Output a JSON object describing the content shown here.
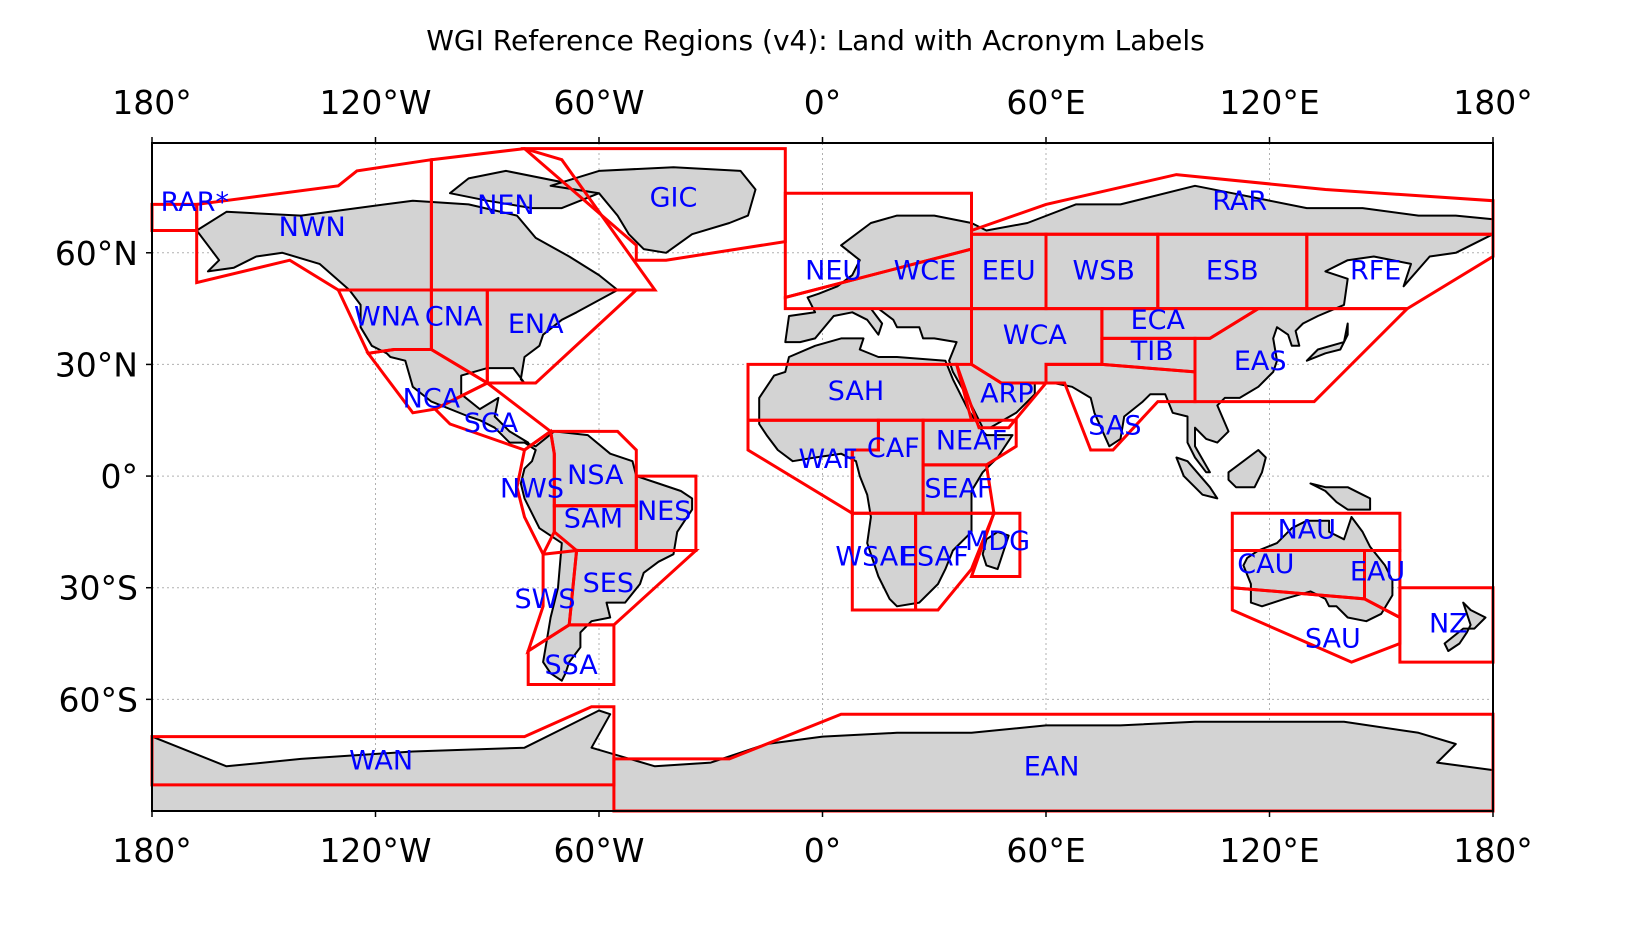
{
  "title": "WGI Reference Regions (v4): Land with Acronym Labels",
  "x_ticks": [
    "180°",
    "120°W",
    "60°W",
    "0°",
    "60°E",
    "120°E",
    "180°"
  ],
  "y_ticks": [
    "60°N",
    "30°N",
    "0°",
    "30°S",
    "60°S"
  ],
  "colors": {
    "land": "#d3d3d3",
    "coast": "#000000",
    "region_outline": "#ff0000",
    "label": "#0000ff",
    "grid": "#b0b0b0"
  },
  "regions": [
    {
      "acronym": "RAR*",
      "lon": -168.5,
      "lat": 73.3,
      "polygon": [
        [
          -180,
          73
        ],
        [
          -168,
          73
        ],
        [
          -168,
          66
        ],
        [
          -180,
          66
        ]
      ]
    },
    {
      "acronym": "NWN",
      "lon": -137,
      "lat": 66.5,
      "polygon": [
        [
          -168,
          73
        ],
        [
          -168,
          52
        ],
        [
          -143,
          58
        ],
        [
          -130,
          50
        ],
        [
          -105,
          50
        ],
        [
          -105,
          85
        ],
        [
          -125,
          82
        ],
        [
          -130,
          78
        ]
      ]
    },
    {
      "acronym": "NEN",
      "lon": -85,
      "lat": 72.5,
      "polygon": [
        [
          -105,
          85
        ],
        [
          -80,
          88
        ],
        [
          -70,
          85
        ],
        [
          -45,
          50
        ],
        [
          -105,
          50
        ]
      ]
    },
    {
      "acronym": "GIC",
      "lon": -40,
      "lat": 74.5,
      "polygon": [
        [
          -80,
          88
        ],
        [
          -10,
          88
        ],
        [
          -10,
          63
        ],
        [
          -42,
          58
        ],
        [
          -50,
          58
        ],
        [
          -50,
          62
        ]
      ]
    },
    {
      "acronym": "WNA",
      "lon": -117,
      "lat": 42.5,
      "polygon": [
        [
          -130,
          50
        ],
        [
          -105,
          50
        ],
        [
          -105,
          34
        ],
        [
          -115,
          34
        ],
        [
          -122,
          33
        ],
        [
          -130,
          50
        ]
      ]
    },
    {
      "acronym": "CNA",
      "lon": -99,
      "lat": 42.5,
      "polygon": [
        [
          -105,
          50
        ],
        [
          -90,
          50
        ],
        [
          -90,
          25
        ],
        [
          -105,
          34
        ]
      ]
    },
    {
      "acronym": "ENA",
      "lon": -77,
      "lat": 40.5,
      "polygon": [
        [
          -90,
          50
        ],
        [
          -50,
          50
        ],
        [
          -77,
          25
        ],
        [
          -90,
          25
        ]
      ]
    },
    {
      "acronym": "NCA",
      "lon": -105,
      "lat": 20.5,
      "polygon": [
        [
          -122,
          33
        ],
        [
          -115,
          34
        ],
        [
          -105,
          34
        ],
        [
          -90,
          25
        ],
        [
          -104,
          18
        ],
        [
          -110,
          17
        ]
      ]
    },
    {
      "acronym": "SCA",
      "lon": -89,
      "lat": 13.8,
      "polygon": [
        [
          -104,
          18
        ],
        [
          -90,
          25
        ],
        [
          -73,
          12
        ],
        [
          -80,
          7
        ],
        [
          -100,
          14
        ]
      ]
    },
    {
      "acronym": "NSA",
      "lon": -61,
      "lat": -0.1,
      "polygon": [
        [
          -73,
          12
        ],
        [
          -55,
          12
        ],
        [
          -50,
          7
        ],
        [
          -50,
          -8
        ],
        [
          -72,
          -8
        ],
        [
          -72,
          6
        ]
      ]
    },
    {
      "acronym": "NWS",
      "lon": -78,
      "lat": -3.8,
      "polygon": [
        [
          -80,
          7
        ],
        [
          -73,
          12
        ],
        [
          -72,
          6
        ],
        [
          -72,
          -8
        ],
        [
          -72,
          -15
        ],
        [
          -75,
          -21
        ],
        [
          -80,
          -11
        ],
        [
          -82,
          -3
        ]
      ]
    },
    {
      "acronym": "NES",
      "lon": -42.5,
      "lat": -9.8,
      "polygon": [
        [
          -50,
          0
        ],
        [
          -34,
          0
        ],
        [
          -34,
          -20
        ],
        [
          -50,
          -20
        ]
      ]
    },
    {
      "acronym": "SAM",
      "lon": -61.5,
      "lat": -11.8,
      "polygon": [
        [
          -72,
          -8
        ],
        [
          -50,
          -8
        ],
        [
          -50,
          -20
        ],
        [
          -66,
          -20
        ],
        [
          -72,
          -15
        ]
      ]
    },
    {
      "acronym": "SWS",
      "lon": -74.5,
      "lat": -33.5,
      "polygon": [
        [
          -75,
          -21
        ],
        [
          -66,
          -20
        ],
        [
          -68,
          -40
        ],
        [
          -79,
          -47
        ],
        [
          -75,
          -35
        ]
      ]
    },
    {
      "acronym": "SES",
      "lon": -57.5,
      "lat": -29.2,
      "polygon": [
        [
          -66,
          -20
        ],
        [
          -34,
          -20
        ],
        [
          -56,
          -40
        ],
        [
          -68,
          -40
        ]
      ]
    },
    {
      "acronym": "SSA",
      "lon": -67.5,
      "lat": -51.2,
      "polygon": [
        [
          -79,
          -47
        ],
        [
          -68,
          -40
        ],
        [
          -56,
          -40
        ],
        [
          -56,
          -56
        ],
        [
          -79,
          -56
        ]
      ]
    },
    {
      "acronym": "WAN",
      "lon": -118.5,
      "lat": -76.8,
      "polygon": [
        [
          -180,
          -70
        ],
        [
          -80,
          -70
        ],
        [
          -62,
          -62
        ],
        [
          -56,
          -62
        ],
        [
          -56,
          -83
        ],
        [
          -180,
          -83
        ]
      ]
    },
    {
      "acronym": "EAN",
      "lon": 61.5,
      "lat": -78.5,
      "polygon": [
        [
          -56,
          -83
        ],
        [
          -56,
          -76
        ],
        [
          -25,
          -76
        ],
        [
          5,
          -64
        ],
        [
          180,
          -64
        ],
        [
          180,
          -90
        ],
        [
          -56,
          -90
        ]
      ]
    },
    {
      "acronym": "NEU",
      "lon": 3,
      "lat": 54.8,
      "polygon": [
        [
          -10,
          76
        ],
        [
          40,
          76
        ],
        [
          40,
          61
        ],
        [
          -10,
          48
        ]
      ]
    },
    {
      "acronym": "WCE",
      "lon": 27.5,
      "lat": 54.8,
      "polygon": [
        [
          -10,
          45
        ],
        [
          -10,
          48
        ],
        [
          40,
          61
        ],
        [
          40,
          45
        ]
      ]
    },
    {
      "acronym": "EEU",
      "lon": 50,
      "lat": 54.8,
      "polygon": [
        [
          40,
          65
        ],
        [
          60,
          65
        ],
        [
          60,
          45
        ],
        [
          40,
          45
        ]
      ]
    },
    {
      "acronym": "WSB",
      "lon": 75.5,
      "lat": 54.8,
      "polygon": [
        [
          60,
          65
        ],
        [
          90,
          65
        ],
        [
          90,
          45
        ],
        [
          60,
          45
        ]
      ]
    },
    {
      "acronym": "ESB",
      "lon": 110,
      "lat": 54.8,
      "polygon": [
        [
          90,
          65
        ],
        [
          130,
          65
        ],
        [
          130,
          45
        ],
        [
          90,
          45
        ]
      ]
    },
    {
      "acronym": "RFE",
      "lon": 148.5,
      "lat": 54.8,
      "polygon": [
        [
          130,
          65
        ],
        [
          180,
          65
        ],
        [
          180,
          59
        ],
        [
          157,
          45
        ],
        [
          130,
          45
        ]
      ]
    },
    {
      "acronym": "RAR",
      "lon": 112,
      "lat": 73.5,
      "polygon": [
        [
          40,
          66
        ],
        [
          60,
          73
        ],
        [
          95,
          81
        ],
        [
          135,
          77
        ],
        [
          180,
          74
        ],
        [
          180,
          65
        ],
        [
          40,
          65
        ]
      ]
    },
    {
      "acronym": "WCA",
      "lon": 57,
      "lat": 37.5,
      "polygon": [
        [
          40,
          45
        ],
        [
          75,
          45
        ],
        [
          75,
          30
        ],
        [
          60,
          30
        ],
        [
          60,
          25
        ],
        [
          48,
          25
        ],
        [
          40,
          30
        ]
      ]
    },
    {
      "acronym": "ECA",
      "lon": 90,
      "lat": 41.5,
      "polygon": [
        [
          75,
          45
        ],
        [
          117,
          45
        ],
        [
          104,
          37
        ],
        [
          75,
          37
        ]
      ]
    },
    {
      "acronym": "TIB",
      "lon": 88.5,
      "lat": 33.2,
      "polygon": [
        [
          75,
          37
        ],
        [
          100,
          37
        ],
        [
          100,
          28
        ],
        [
          75,
          30
        ]
      ]
    },
    {
      "acronym": "EAS",
      "lon": 117.5,
      "lat": 30.5,
      "polygon": [
        [
          100,
          37
        ],
        [
          104,
          37
        ],
        [
          117,
          45
        ],
        [
          157,
          45
        ],
        [
          132,
          20
        ],
        [
          100,
          20
        ]
      ]
    },
    {
      "acronym": "SAS",
      "lon": 78.5,
      "lat": 13.2,
      "polygon": [
        [
          60,
          30
        ],
        [
          75,
          30
        ],
        [
          100,
          28
        ],
        [
          100,
          20
        ],
        [
          90,
          20
        ],
        [
          78,
          7
        ],
        [
          72,
          7
        ],
        [
          65,
          25
        ],
        [
          60,
          25
        ]
      ]
    },
    {
      "acronym": "ARP",
      "lon": 49.5,
      "lat": 21.8,
      "polygon": [
        [
          40,
          30
        ],
        [
          48,
          25
        ],
        [
          60,
          25
        ],
        [
          50,
          13
        ],
        [
          42,
          13
        ],
        [
          36,
          30
        ]
      ]
    },
    {
      "acronym": "SAH",
      "lon": 9,
      "lat": 22.5,
      "polygon": [
        [
          -20,
          30
        ],
        [
          36,
          30
        ],
        [
          40,
          15
        ],
        [
          -20,
          15
        ]
      ]
    },
    {
      "acronym": "WAF",
      "lon": 1.5,
      "lat": 4.2,
      "polygon": [
        [
          -20,
          15
        ],
        [
          15,
          15
        ],
        [
          15,
          7
        ],
        [
          8,
          7
        ],
        [
          8,
          -10
        ],
        [
          -20,
          7
        ]
      ]
    },
    {
      "acronym": "CAF",
      "lon": 19,
      "lat": 7.2,
      "polygon": [
        [
          8,
          7
        ],
        [
          15,
          7
        ],
        [
          15,
          15
        ],
        [
          27,
          15
        ],
        [
          27,
          -10
        ],
        [
          8,
          -10
        ]
      ]
    },
    {
      "acronym": "NEAF",
      "lon": 40,
      "lat": 9.2,
      "polygon": [
        [
          27,
          15
        ],
        [
          40,
          15
        ],
        [
          52,
          15
        ],
        [
          52,
          8
        ],
        [
          44,
          3
        ],
        [
          27,
          3
        ]
      ]
    },
    {
      "acronym": "SEAF",
      "lon": 36.5,
      "lat": -3.8,
      "polygon": [
        [
          27,
          3
        ],
        [
          44,
          3
        ],
        [
          46,
          -10
        ],
        [
          27,
          -10
        ]
      ]
    },
    {
      "acronym": "WSAF",
      "lon": 14,
      "lat": -22,
      "polygon": [
        [
          8,
          -10
        ],
        [
          25,
          -10
        ],
        [
          25,
          -36
        ],
        [
          8,
          -36
        ]
      ]
    },
    {
      "acronym": "ESAF",
      "lon": 30,
      "lat": -22,
      "polygon": [
        [
          25,
          -10
        ],
        [
          46,
          -10
        ],
        [
          40,
          -25
        ],
        [
          31,
          -36
        ],
        [
          25,
          -36
        ]
      ]
    },
    {
      "acronym": "MDG",
      "lon": 47,
      "lat": -17.8,
      "polygon": [
        [
          46,
          -10
        ],
        [
          53,
          -10
        ],
        [
          53,
          -27
        ],
        [
          40,
          -27
        ]
      ]
    },
    {
      "acronym": "NAU",
      "lon": 130,
      "lat": -14.8,
      "polygon": [
        [
          110,
          -10
        ],
        [
          155,
          -10
        ],
        [
          155,
          -20
        ],
        [
          110,
          -20
        ]
      ]
    },
    {
      "acronym": "CAU",
      "lon": 119,
      "lat": -24,
      "polygon": [
        [
          110,
          -20
        ],
        [
          145.5,
          -20
        ],
        [
          145.5,
          -33
        ],
        [
          110,
          -30
        ]
      ]
    },
    {
      "acronym": "EAU",
      "lon": 149,
      "lat": -26,
      "polygon": [
        [
          145.5,
          -20
        ],
        [
          155,
          -20
        ],
        [
          155,
          -38
        ],
        [
          145.5,
          -33
        ]
      ]
    },
    {
      "acronym": "SAU",
      "lon": 137,
      "lat": -44,
      "polygon": [
        [
          110,
          -30
        ],
        [
          110,
          -36
        ],
        [
          142,
          -50
        ],
        [
          155,
          -45
        ],
        [
          155,
          -38
        ],
        [
          145.5,
          -33
        ]
      ]
    },
    {
      "acronym": "NZ",
      "lon": 168,
      "lat": -40,
      "polygon": [
        [
          155,
          -30
        ],
        [
          180,
          -30
        ],
        [
          180,
          -50
        ],
        [
          155,
          -50
        ]
      ]
    }
  ]
}
